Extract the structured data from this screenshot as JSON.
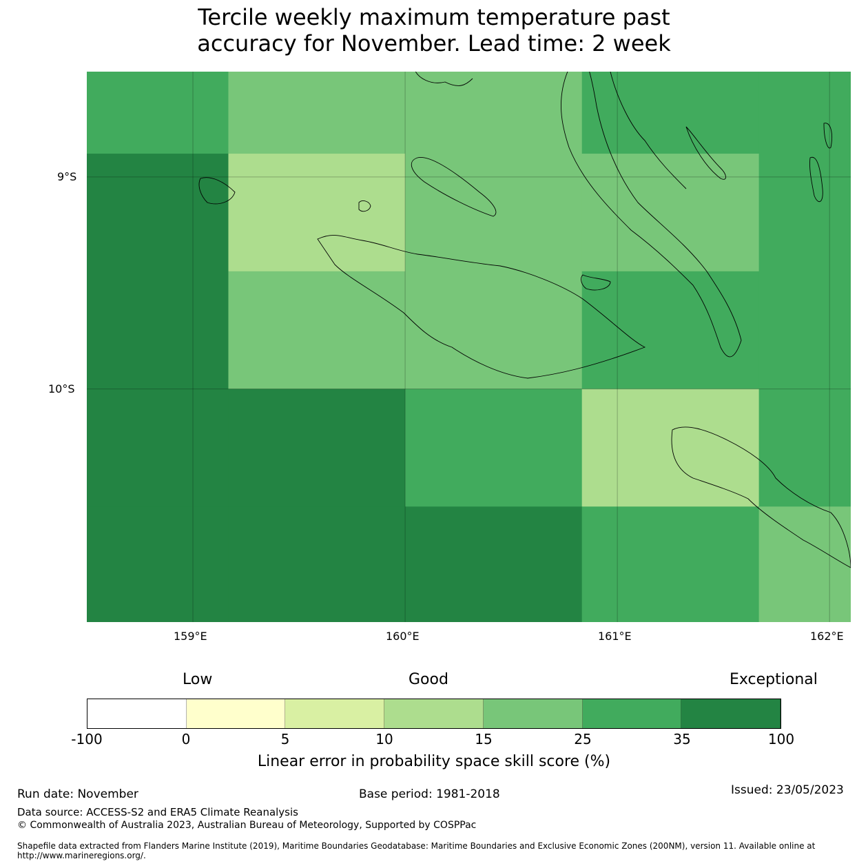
{
  "title_line1": "Tercile weekly maximum temperature past",
  "title_line2": "accuracy for November. Lead time: 2 week",
  "map": {
    "lon_range": [
      158.5,
      162.1
    ],
    "lat_range": [
      -11.1,
      -8.503
    ],
    "lon_ticks": [
      "159°E",
      "160°E",
      "161°E",
      "162°E"
    ],
    "lat_ticks": [
      "9°S",
      "10°S"
    ],
    "cell_lon_edges": [
      158.5,
      159.167,
      160.0,
      160.833,
      161.667,
      162.1
    ],
    "cell_lat_edges": [
      -8.503,
      -8.89,
      -9.445,
      -10.0,
      -10.555,
      -11.1
    ],
    "cell_categories": [
      [
        5,
        4,
        4,
        5,
        5
      ],
      [
        6,
        3,
        4,
        4,
        5
      ],
      [
        6,
        4,
        4,
        5,
        5
      ],
      [
        6,
        6,
        5,
        3,
        5
      ],
      [
        6,
        6,
        6,
        5,
        4
      ]
    ]
  },
  "colorbar": {
    "headings": {
      "low": "Low",
      "good": "Good",
      "exceptional": "Exceptional"
    },
    "bounds": [
      "-100",
      "0",
      "5",
      "10",
      "15",
      "25",
      "35",
      "100"
    ],
    "colors": [
      "#ffffff",
      "#ffffcc",
      "#d9f0a3",
      "#addd8e",
      "#78c679",
      "#41ab5d",
      "#238443"
    ],
    "label": "Linear error in probability space skill score (%)"
  },
  "footer": {
    "run_date": "Run date: November",
    "base_period": "Base period: 1981-2018",
    "issued": "Issued: 23/05/2023",
    "data_source": "Data source: ACCESS-S2 and ERA5 Climate Reanalysis",
    "copyright": "© Commonwealth of Australia 2023, Australian Bureau of Meteorology, Supported by COSPPac",
    "shapefile": "Shapefile data extracted from Flanders Marine Institute (2019), Maritime Boundaries Geodatabase: Maritime Boundaries and Exclusive Economic Zones (200NM), version 11. Available online at http://www.marineregions.org/."
  }
}
